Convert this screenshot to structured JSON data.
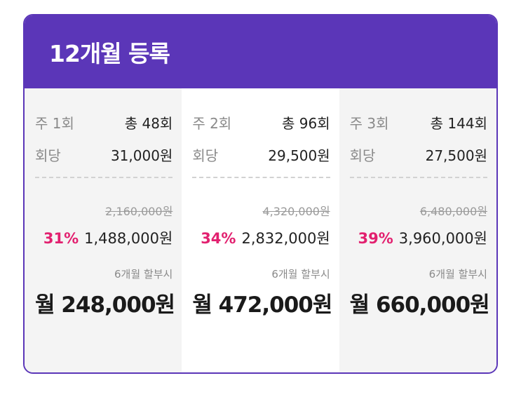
{
  "header": {
    "title": "12개월 등록"
  },
  "colors": {
    "accent": "#5b36b8",
    "discount": "#e2206f"
  },
  "plans": [
    {
      "frequency": "주 1회",
      "total_sessions": "총 48회",
      "per_session_label": "회당",
      "per_session_price": "31,000원",
      "original_price": "2,160,000원",
      "discount": "31%",
      "price": "1,488,000원",
      "installment_label": "6개월 할부시",
      "monthly_price": "월 248,000원"
    },
    {
      "frequency": "주 2회",
      "total_sessions": "총 96회",
      "per_session_label": "회당",
      "per_session_price": "29,500원",
      "original_price": "4,320,000원",
      "discount": "34%",
      "price": "2,832,000원",
      "installment_label": "6개월 할부시",
      "monthly_price": "월 472,000원"
    },
    {
      "frequency": "주 3회",
      "total_sessions": "총 144회",
      "per_session_label": "회당",
      "per_session_price": "27,500원",
      "original_price": "6,480,000원",
      "discount": "39%",
      "price": "3,960,000원",
      "installment_label": "6개월 할부시",
      "monthly_price": "월 660,000원"
    }
  ]
}
